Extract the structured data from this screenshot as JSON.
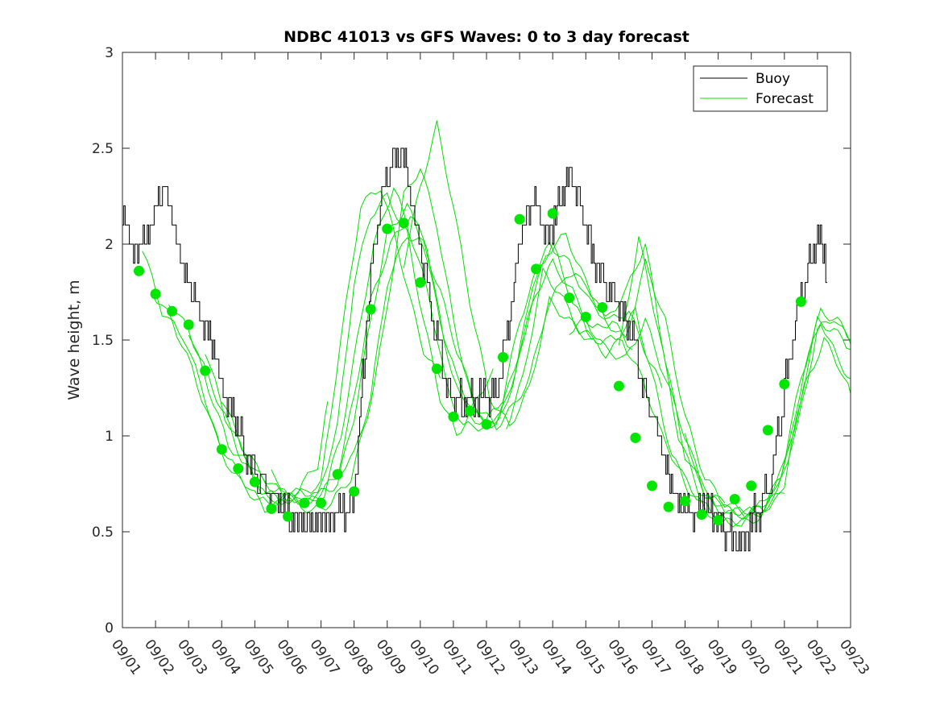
{
  "chart_data": {
    "type": "line",
    "title": "NDBC 41013 vs GFS Waves: 0 to 3 day forecast",
    "xlabel": "",
    "ylabel": "Wave height, m",
    "x_unit": "days since 09/01",
    "xlim": [
      0,
      22
    ],
    "ylim": [
      0,
      3
    ],
    "y_ticks": [
      0,
      0.5,
      1,
      1.5,
      2,
      2.5,
      3
    ],
    "y_tick_labels": [
      "0",
      "0.5",
      "1",
      "1.5",
      "2",
      "2.5",
      "3"
    ],
    "x_ticks": [
      0,
      1,
      2,
      3,
      4,
      5,
      6,
      7,
      8,
      9,
      10,
      11,
      12,
      13,
      14,
      15,
      16,
      17,
      18,
      19,
      20,
      21,
      22
    ],
    "x_tick_labels": [
      "09/01",
      "09/02",
      "09/03",
      "09/04",
      "09/05",
      "09/06",
      "09/07",
      "09/08",
      "09/09",
      "09/10",
      "09/11",
      "09/12",
      "09/13",
      "09/14",
      "09/15",
      "09/16",
      "09/17",
      "09/18",
      "09/19",
      "09/20",
      "09/21",
      "09/22",
      "09/23"
    ],
    "grid": false,
    "legend": {
      "location": "top-right",
      "entries": [
        {
          "label": "Buoy",
          "color": "#000000"
        },
        {
          "label": "Forecast",
          "color": "#00e000"
        }
      ]
    },
    "colors": {
      "buoy": "#000000",
      "forecast": "#00e000",
      "marker": "#00e600"
    },
    "buoy": {
      "name": "Buoy",
      "key_x": [
        0,
        0.15,
        0.3,
        0.5,
        0.8,
        1.0,
        1.25,
        1.45,
        1.65,
        1.9,
        2.1,
        2.4,
        2.75,
        3.05,
        3.45,
        3.75,
        4.05,
        4.35,
        4.7,
        5.0,
        5.3,
        5.7,
        6.05,
        6.4,
        6.8,
        7.0,
        7.25,
        7.6,
        7.85,
        8.05,
        8.25,
        8.5,
        8.75,
        9.05,
        9.4,
        9.7,
        9.95,
        10.25,
        10.6,
        10.95,
        11.3,
        11.65,
        11.95,
        12.25,
        12.5,
        12.75,
        13.05,
        13.35,
        13.6,
        13.85,
        14.1,
        14.3,
        14.6,
        15.0,
        15.35,
        15.75,
        16.1,
        16.5,
        16.8,
        17.05,
        17.35,
        17.65,
        17.95,
        18.2,
        18.5,
        18.85,
        19.2,
        19.55,
        19.85,
        20.15,
        20.45,
        20.7,
        21.0,
        21.2,
        21.3
      ],
      "key_y": [
        2.1,
        2.15,
        1.95,
        2.0,
        2.05,
        2.2,
        2.3,
        2.15,
        2.0,
        1.85,
        1.75,
        1.62,
        1.45,
        1.25,
        1.05,
        0.9,
        0.8,
        0.72,
        0.66,
        0.58,
        0.55,
        0.56,
        0.55,
        0.6,
        0.62,
        0.68,
        1.3,
        2.0,
        2.25,
        2.4,
        2.45,
        2.45,
        2.2,
        1.95,
        1.6,
        1.35,
        1.2,
        1.15,
        1.2,
        1.2,
        1.22,
        1.55,
        2.0,
        2.2,
        2.2,
        2.05,
        2.1,
        2.3,
        2.35,
        2.2,
        2.0,
        1.9,
        1.8,
        1.7,
        1.55,
        1.25,
        1.05,
        0.8,
        0.65,
        0.6,
        0.62,
        0.65,
        0.58,
        0.5,
        0.45,
        0.5,
        0.6,
        0.75,
        1.05,
        1.4,
        1.7,
        1.85,
        2.05,
        1.95,
        1.8
      ],
      "amplitude": 0.1,
      "step": 0.1
    },
    "forecast_runs": [
      {
        "x": [
          0.6,
          1.2,
          1.9,
          2.5,
          3.0,
          3.6,
          4.1,
          4.7,
          5.3,
          5.9,
          6.2
        ],
        "y": [
          1.98,
          1.65,
          1.5,
          1.2,
          0.9,
          0.75,
          0.66,
          0.65,
          0.72,
          0.85,
          1.18
        ]
      },
      {
        "x": [
          0.9,
          1.5,
          2.1,
          2.7,
          3.2,
          3.7,
          4.3,
          4.9,
          5.4,
          6.0,
          6.6,
          7.2,
          7.8,
          8.3,
          8.7,
          9.1,
          9.6
        ],
        "y": [
          1.75,
          1.6,
          1.35,
          1.05,
          0.88,
          0.76,
          0.62,
          0.66,
          0.7,
          0.75,
          1.5,
          2.2,
          2.3,
          2.0,
          1.7,
          1.45,
          1.3
        ]
      },
      {
        "x": [
          1.4,
          2.0,
          2.6,
          3.1,
          3.6,
          4.2,
          4.8,
          5.4,
          5.9,
          6.5,
          7.0,
          7.5,
          8.0,
          8.6,
          9.1,
          9.6,
          10.1,
          10.6,
          11.2
        ],
        "y": [
          1.7,
          1.55,
          1.3,
          1.1,
          0.88,
          0.72,
          0.66,
          0.72,
          0.68,
          1.05,
          1.8,
          2.15,
          2.25,
          2.05,
          1.6,
          1.2,
          1.0,
          1.15,
          1.35
        ]
      },
      {
        "x": [
          2.0,
          2.6,
          3.2,
          3.8,
          4.4,
          5.0,
          5.6,
          6.1,
          6.6,
          7.1,
          7.6,
          8.2,
          8.8,
          9.3,
          9.8,
          10.3,
          10.9,
          11.5,
          12.0,
          12.5,
          13.0,
          13.6,
          14.2
        ],
        "y": [
          1.55,
          1.25,
          0.95,
          0.85,
          0.66,
          0.68,
          0.65,
          0.7,
          1.0,
          1.5,
          2.0,
          2.3,
          2.0,
          1.7,
          1.25,
          1.05,
          1.05,
          1.2,
          1.6,
          1.85,
          2.0,
          1.7,
          1.5
        ]
      },
      {
        "x": [
          2.5,
          3.1,
          3.7,
          4.3,
          4.9,
          5.5,
          6.0,
          6.5,
          7.0,
          7.5,
          8.1,
          8.7,
          9.2,
          9.7,
          10.2,
          10.8,
          11.4,
          12.0,
          12.5,
          13.0,
          13.6,
          14.2,
          14.8,
          15.4
        ],
        "y": [
          1.45,
          1.1,
          0.9,
          0.75,
          0.7,
          0.65,
          0.7,
          0.8,
          1.2,
          1.7,
          2.0,
          2.15,
          2.0,
          1.5,
          1.2,
          1.05,
          1.1,
          1.45,
          1.75,
          1.9,
          1.75,
          1.55,
          1.6,
          1.45
        ]
      },
      {
        "x": [
          3.0,
          3.6,
          4.2,
          4.8,
          5.4,
          6.0,
          6.5,
          7.0,
          7.5,
          8.0,
          8.6,
          9.1,
          9.6,
          10.1,
          10.7,
          11.3,
          11.9,
          12.4,
          12.9,
          13.5,
          14.1,
          14.7,
          15.3,
          15.9,
          16.3
        ],
        "y": [
          1.2,
          0.95,
          0.8,
          0.7,
          0.65,
          0.7,
          0.75,
          1.1,
          1.6,
          2.05,
          2.2,
          2.0,
          1.6,
          1.3,
          1.1,
          1.05,
          1.35,
          1.8,
          2.0,
          1.9,
          1.7,
          1.6,
          1.65,
          1.4,
          1.25
        ]
      },
      {
        "x": [
          4.5,
          5.1,
          5.7,
          6.3,
          6.9,
          7.4,
          7.9,
          8.5,
          9.0,
          9.5,
          10.0,
          10.6,
          11.2,
          11.8,
          12.3,
          12.8,
          13.4,
          14.0,
          14.6,
          15.2,
          15.8,
          16.4,
          17.0,
          17.6,
          18.2
        ],
        "y": [
          0.8,
          0.68,
          0.6,
          0.65,
          0.78,
          1.1,
          1.55,
          2.25,
          2.4,
          2.1,
          1.6,
          1.15,
          1.05,
          1.25,
          1.65,
          1.95,
          2.05,
          1.8,
          1.6,
          1.75,
          2.0,
          1.4,
          0.9,
          0.7,
          0.65
        ]
      },
      {
        "x": [
          6.5,
          7.0,
          7.5,
          8.0,
          8.6,
          9.1,
          9.6,
          10.1,
          10.7,
          11.3,
          11.8,
          12.3,
          12.8,
          13.4,
          14.0,
          14.6,
          15.2,
          15.8,
          16.4,
          17.0,
          17.6,
          18.2,
          18.8,
          19.4,
          20.0
        ],
        "y": [
          0.8,
          0.9,
          1.2,
          1.8,
          2.05,
          2.0,
          1.75,
          1.45,
          1.15,
          1.05,
          1.15,
          1.3,
          1.65,
          1.85,
          1.8,
          1.6,
          1.5,
          1.9,
          1.6,
          1.1,
          0.78,
          0.65,
          0.6,
          0.62,
          0.7
        ]
      },
      {
        "x": [
          8.5,
          9.0,
          9.5,
          10.0,
          10.5,
          11.1,
          11.7,
          12.3,
          12.9,
          13.5,
          14.1,
          14.6,
          15.1,
          15.7,
          16.3,
          16.9,
          17.5,
          18.1,
          18.7,
          19.3,
          19.9,
          20.5,
          21.1,
          21.6,
          22.0
        ],
        "y": [
          1.9,
          2.3,
          2.62,
          2.2,
          1.7,
          1.2,
          1.05,
          1.25,
          1.7,
          1.6,
          1.5,
          1.43,
          1.5,
          1.3,
          1.0,
          0.8,
          0.65,
          0.55,
          0.55,
          0.6,
          0.8,
          1.3,
          1.65,
          1.6,
          1.5
        ]
      },
      {
        "x": [
          11.6,
          12.1,
          12.7,
          13.2,
          13.8,
          14.3,
          14.9,
          15.5,
          16.1,
          16.6,
          17.1,
          17.7,
          18.3,
          18.9,
          19.5,
          20.1,
          20.6,
          21.1,
          21.6,
          22.0
        ],
        "y": [
          1.05,
          1.3,
          1.85,
          1.75,
          1.55,
          1.5,
          1.5,
          1.65,
          1.25,
          0.9,
          0.72,
          0.6,
          0.55,
          0.55,
          0.6,
          0.9,
          1.35,
          1.6,
          1.4,
          1.3
        ]
      },
      {
        "x": [
          13.5,
          14.0,
          14.6,
          15.2,
          15.8,
          16.4,
          17.0,
          17.6,
          18.2,
          18.8,
          19.4,
          20.0,
          20.6,
          21.2,
          21.7,
          22.0
        ],
        "y": [
          1.55,
          1.6,
          1.45,
          1.4,
          1.6,
          1.3,
          1.0,
          0.7,
          0.62,
          0.6,
          0.65,
          0.85,
          1.25,
          1.5,
          1.35,
          1.22
        ]
      },
      {
        "x": [
          15.0,
          15.6,
          16.2,
          16.8,
          17.4,
          18.0,
          18.6,
          19.2,
          19.8,
          20.4,
          21.0,
          21.5,
          22.0
        ],
        "y": [
          1.45,
          2.03,
          1.55,
          1.0,
          0.72,
          0.62,
          0.58,
          0.62,
          0.72,
          1.05,
          1.55,
          1.62,
          1.48
        ]
      },
      {
        "x": [
          17.0,
          17.6,
          18.2,
          18.8,
          19.4,
          20.0,
          20.5,
          21.0,
          21.5,
          22.0
        ],
        "y": [
          1.0,
          0.7,
          0.62,
          0.6,
          0.62,
          0.75,
          1.2,
          1.6,
          1.55,
          1.45
        ]
      }
    ],
    "markers": {
      "x": [
        0.5,
        1.0,
        1.5,
        2.0,
        2.5,
        3.0,
        3.5,
        4.0,
        4.5,
        5.0,
        5.5,
        6.0,
        6.5,
        7.0,
        7.5,
        8.0,
        8.5,
        9.0,
        9.5,
        10.0,
        10.5,
        11.0,
        11.5,
        12.0,
        12.5,
        13.0,
        13.5,
        14.0,
        14.5,
        15.0,
        15.5,
        16.0,
        16.5,
        17.0,
        17.5,
        18.0,
        18.5,
        19.0,
        19.5,
        20.0,
        20.5,
        21.0
      ],
      "y": [
        1.86,
        1.74,
        1.65,
        1.58,
        1.34,
        0.93,
        0.83,
        0.76,
        0.62,
        0.58,
        0.65,
        0.65,
        0.8,
        0.71,
        1.66,
        2.08,
        2.11,
        1.8,
        1.35,
        1.1,
        1.13,
        1.06,
        1.41,
        2.13,
        1.87,
        2.16,
        1.72,
        1.62,
        1.67,
        1.26,
        0.99,
        0.74,
        0.63,
        0.66,
        0.59,
        0.56,
        0.67,
        0.74,
        1.03,
        1.27,
        1.7,
        null
      ]
    }
  }
}
